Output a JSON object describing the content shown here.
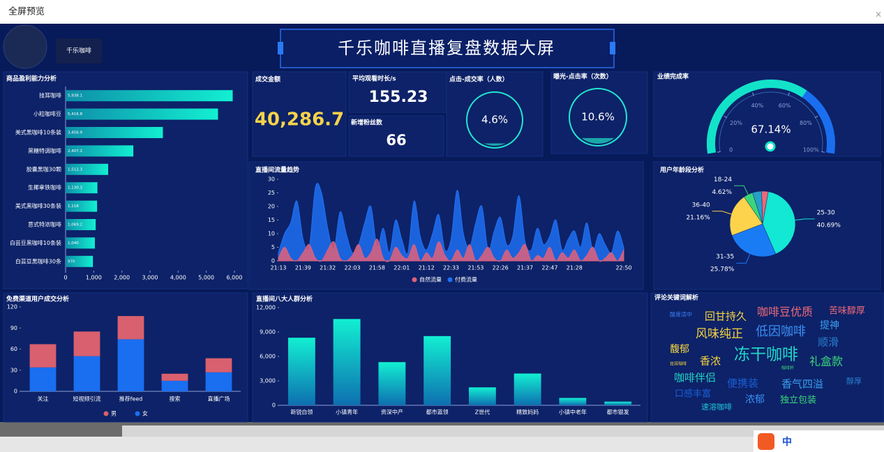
{
  "window": {
    "title": "全屏预览",
    "close": "×"
  },
  "header": {
    "avatar_label": "千乐咖啡",
    "title": "千乐咖啡直播复盘数据大屏"
  },
  "kpis": [
    {
      "label": "成交金额",
      "value": "40,286.7"
    },
    {
      "label": "平均观看时长/s",
      "value": "155.23"
    },
    {
      "label": "新增粉丝数",
      "value": "66"
    },
    {
      "label": "点击-成交率（人数）",
      "value": 4.6,
      "value_label": "4.6%"
    },
    {
      "label": "曝光-点击率（次数）",
      "value": 10.6,
      "value_label": "10.6%"
    }
  ],
  "chart_data": [
    {
      "type": "hbar",
      "title": "商品盈利能力分析",
      "categories": [
        "挂耳咖啡",
        "小粒咖啡豆",
        "美式黑咖啡10条装",
        "黑糖特调咖啡",
        "胶囊黑咖30颗",
        "生椰拿铁咖啡",
        "美式黑咖啡30条装",
        "意式特浓咖啡",
        "白芸豆黑咖啡10条装",
        "白芸豆黑咖啡30条"
      ],
      "values": [
        5938.1,
        5416.8,
        3456.9,
        2407.2,
        1512.3,
        1130.3,
        1118,
        1069.2,
        1040,
        970
      ],
      "value_labels": [
        "5,938.1",
        "5,416.8",
        "3,456.9",
        "2,407.2",
        "1,512.3",
        "1,130.3",
        "1,118",
        "1,069.2",
        "1,040",
        "970"
      ],
      "color": "#12e3c8",
      "xlim": [
        0,
        6000
      ],
      "xticks": [
        0,
        {
          "value": 1000,
          "label": "1,000"
        },
        {
          "value": 2000,
          "label": "2,000"
        },
        {
          "value": 3000,
          "label": "3,000"
        },
        {
          "value": 4000,
          "label": "4,000"
        },
        {
          "value": 5000,
          "label": "5,000"
        },
        {
          "value": 6000,
          "label": "6,000"
        }
      ]
    },
    {
      "type": "area",
      "title": "直播间流量趋势",
      "categories": [
        "21:13",
        null,
        null,
        null,
        "21:39",
        null,
        null,
        null,
        "21:32",
        null,
        null,
        null,
        "22:03",
        null,
        null,
        null,
        "21:58",
        null,
        null,
        null,
        "22:01",
        null,
        null,
        null,
        "21:12",
        null,
        null,
        null,
        "22:33",
        null,
        null,
        null,
        "21:53",
        null,
        null,
        null,
        "22:26",
        null,
        null,
        null,
        "21:37",
        null,
        null,
        null,
        "22:47",
        null,
        null,
        null,
        "21:28",
        null,
        null,
        null,
        null,
        null,
        null,
        null,
        "22:50"
      ],
      "series": [
        {
          "name": "自然流量",
          "color": "#e0607a",
          "values": [
            1,
            5,
            1,
            0,
            3,
            6,
            1,
            0,
            4,
            7,
            1,
            0,
            2,
            6,
            1,
            3,
            8,
            1,
            0,
            5,
            2,
            1,
            6,
            0,
            3,
            1,
            7,
            2,
            0,
            4,
            1,
            6,
            0,
            2,
            5,
            1,
            0,
            4,
            1,
            3,
            6,
            0,
            2,
            1,
            5,
            0,
            3,
            1,
            4,
            0,
            2,
            5,
            0,
            1,
            3,
            0,
            4
          ]
        },
        {
          "name": "付费流量",
          "color": "#1f6ff2",
          "values": [
            3,
            10,
            14,
            22,
            8,
            5,
            27,
            25,
            12,
            4,
            18,
            10,
            3,
            6,
            14,
            20,
            5,
            12,
            3,
            15,
            8,
            3,
            22,
            9,
            4,
            10,
            17,
            4,
            8,
            26,
            10,
            5,
            14,
            20,
            4,
            11,
            16,
            6,
            9,
            24,
            7,
            4,
            12,
            6,
            9,
            15,
            4,
            8,
            11,
            5,
            14,
            4,
            10,
            6,
            3,
            11,
            5
          ]
        }
      ],
      "ylim": [
        0,
        30
      ],
      "yticks": [
        0,
        5,
        10,
        15,
        20,
        25,
        30
      ]
    },
    {
      "type": "pie",
      "title": "用户年龄段分析",
      "categories": [
        "25-30",
        "31-35",
        "36-40",
        "18-24",
        null,
        null
      ],
      "values": [
        40.69,
        25.78,
        21.16,
        4.62,
        4.5,
        3.25
      ],
      "value_labels": [
        "40.69%",
        "25.78%",
        "21.16%",
        "4.62%",
        null,
        null
      ],
      "colors": [
        "#12e8d4",
        "#1a7cf5",
        "#fcd34a",
        "#3bd67a",
        "#26a0c8",
        "#e86a7a"
      ]
    },
    {
      "type": "stacked_bar",
      "title": "免费渠道用户成交分析",
      "categories": [
        "关注",
        "短视频引流",
        "推荐feed",
        "搜索",
        "直播广场"
      ],
      "series": [
        {
          "name": "男",
          "color": "#d9606e",
          "values": [
            33,
            35,
            33,
            10,
            20
          ]
        },
        {
          "name": "女",
          "color": "#1a6ef0",
          "values": [
            34,
            50,
            74,
            15,
            27
          ]
        }
      ],
      "ylim": [
        0,
        120
      ],
      "yticks": [
        0,
        30,
        60,
        90,
        120
      ]
    },
    {
      "type": "bar",
      "title": "直播间八大人群分析",
      "categories": [
        "新锐白领",
        "小镇青年",
        "资深中产",
        "都市蓝领",
        "Z世代",
        "精致妈妈",
        "小镇中老年",
        "都市银发"
      ],
      "values": [
        8300,
        10600,
        5300,
        8500,
        2200,
        3900,
        900,
        450
      ],
      "color": "#12e3c8",
      "ylim": [
        0,
        12000
      ],
      "yticks": [
        0,
        {
          "value": 3000,
          "label": "3,000"
        },
        {
          "value": 6000,
          "label": "6,000"
        },
        {
          "value": 9000,
          "label": "9,000"
        },
        {
          "value": 12000,
          "label": "12,000"
        }
      ]
    },
    {
      "type": "gauge",
      "title": "业绩完成率",
      "value": 67.14,
      "value_label": "67.14%",
      "color": "#12e3c8",
      "ylim": [
        0,
        100
      ],
      "yticks": [
        0,
        {
          "value": 20,
          "label": "20%"
        },
        {
          "value": 40,
          "label": "40%"
        },
        {
          "value": 60,
          "label": "60%"
        },
        {
          "value": 80,
          "label": "80%"
        },
        {
          "value": 100,
          "label": "100%"
        }
      ]
    }
  ],
  "word_cloud": {
    "title": "评论关键词解析",
    "words": [
      {
        "text": "酸度适中",
        "color": "#3a7df0"
      },
      {
        "text": "回甘持久",
        "color": "#f5d440"
      },
      {
        "text": "咖啡豆优质",
        "color": "#f06a7a"
      },
      {
        "text": "苦味醇厚",
        "color": "#f06a7a"
      },
      {
        "text": "提神",
        "color": "#3a9ff0"
      },
      {
        "text": "风味纯正",
        "color": "#f5d440"
      },
      {
        "text": "低因咖啡",
        "color": "#3a8ff5"
      },
      {
        "text": "顺滑",
        "color": "#2a7fd0"
      },
      {
        "text": "馥郁",
        "color": "#f5d440"
      },
      {
        "text": "冻干咖啡",
        "color": "#22d6c6"
      },
      {
        "text": "香浓",
        "color": "#f5d440"
      },
      {
        "text": "礼盒款",
        "color": "#3ad67a"
      },
      {
        "text": "挂耳咖啡",
        "color": "#f5d440"
      },
      {
        "text": "咖啡杯",
        "color": "#3ad67a"
      },
      {
        "text": "咖啡伴侣",
        "color": "#22d6c6"
      },
      {
        "text": "便携装",
        "color": "#1a5fd6"
      },
      {
        "text": "香气四溢",
        "color": "#3a9ff0"
      },
      {
        "text": "醇厚",
        "color": "#2a7fd0"
      },
      {
        "text": "口感丰富",
        "color": "#1a5fd6"
      },
      {
        "text": "浓郁",
        "color": "#3a8ff5"
      },
      {
        "text": "独立包装",
        "color": "#3ad67a"
      },
      {
        "text": "速溶咖啡",
        "color": "#22c6d6"
      }
    ]
  },
  "ime": {
    "label": "中"
  }
}
